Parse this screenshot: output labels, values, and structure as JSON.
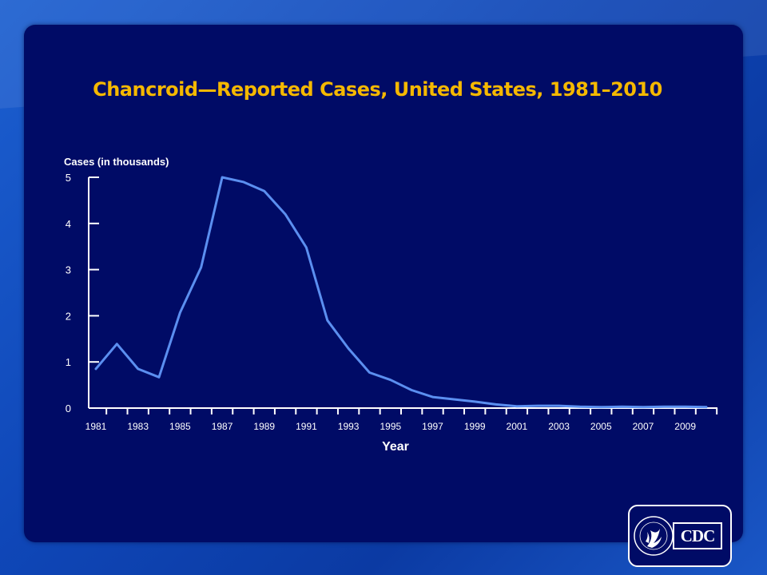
{
  "title": "Chancroid—Reported Cases, United States, 1981–2010",
  "logo": {
    "text": "CDC",
    "icon": "hhs-eagle-icon"
  },
  "colors": {
    "line": "#5b8ff0",
    "title": "#f5b800",
    "panel": "#000b66",
    "axis": "#ffffff"
  },
  "chart_data": {
    "type": "line",
    "title": "Chancroid—Reported Cases, United States, 1981–2010",
    "xlabel": "Year",
    "ylabel": "Cases (in thousands)",
    "ylim": [
      0,
      5
    ],
    "yticks": [
      0,
      1,
      2,
      3,
      4,
      5
    ],
    "xticklabels": [
      "1981",
      "1983",
      "1985",
      "1987",
      "1989",
      "1991",
      "1993",
      "1995",
      "1997",
      "1999",
      "2001",
      "2003",
      "2005",
      "2007",
      "2009"
    ],
    "grid": false,
    "x": [
      1981,
      1982,
      1983,
      1984,
      1985,
      1986,
      1987,
      1988,
      1989,
      1990,
      1991,
      1992,
      1993,
      1994,
      1995,
      1996,
      1997,
      1998,
      1999,
      2000,
      2001,
      2002,
      2003,
      2004,
      2005,
      2006,
      2007,
      2008,
      2009,
      2010
    ],
    "series": [
      {
        "values": [
          0.85,
          1.39,
          0.85,
          0.67,
          2.07,
          3.05,
          5.0,
          4.9,
          4.7,
          4.2,
          3.48,
          1.9,
          1.29,
          0.77,
          0.61,
          0.39,
          0.24,
          0.19,
          0.14,
          0.08,
          0.04,
          0.05,
          0.05,
          0.03,
          0.02,
          0.03,
          0.02,
          0.03,
          0.03,
          0.02
        ]
      }
    ]
  }
}
